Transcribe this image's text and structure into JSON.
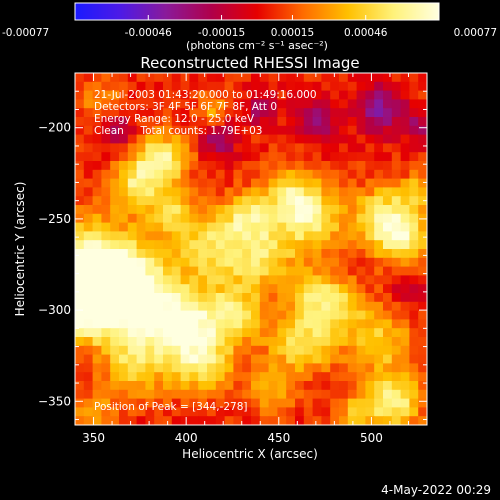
{
  "colorbar": {
    "ticks": [
      "-0.00077",
      "-0.00046",
      "-0.00015",
      "0.00015",
      "0.00046",
      "0.00077"
    ],
    "tick_values": [
      -0.00077,
      -0.00046,
      -0.00015,
      0.00015,
      0.00046,
      0.00077
    ],
    "units": "(photons cm⁻² s⁻¹ asec⁻²)",
    "range": [
      -0.00077,
      0.00077
    ],
    "colors": [
      "#1a1aff",
      "#4d1ae6",
      "#8a1a9a",
      "#b0004a",
      "#e60000",
      "#ff6a00",
      "#ffc000",
      "#fff27a",
      "#ffffe0"
    ]
  },
  "title": "Reconstructed RHESSI Image",
  "info": {
    "line1": "21-Jul-2003 01:43:20.000 to 01:49:16.000",
    "line2": "Detectors: 3F 4F 5F 6F 7F 8F, Att 0",
    "line3": "Energy Range: 12.0 - 25.0 keV",
    "line4": "Clean     Total counts: 1.79E+03"
  },
  "peak_label": "Position of Peak = [344,-278]",
  "timestamp": "4-May-2022 00:29",
  "chart_data": {
    "type": "heatmap",
    "title": "Reconstructed RHESSI Image",
    "xlabel": "Heliocentric X (arcsec)",
    "ylabel": "Heliocentric Y (arcsec)",
    "xlim": [
      340,
      530
    ],
    "ylim": [
      -363,
      -170
    ],
    "x_ticks": [
      350,
      400,
      450,
      500
    ],
    "y_ticks": [
      -200,
      -250,
      -300,
      -350
    ],
    "x_tick_labels": [
      "350",
      "400",
      "450",
      "500"
    ],
    "y_tick_labels": [
      "−200",
      "−250",
      "−300",
      "−350"
    ],
    "peak_position": [
      344,
      -278
    ],
    "z_range": [
      -0.00077,
      0.00077
    ],
    "grid": false,
    "blobs": [
      {
        "x": 350,
        "y": -278,
        "s": 18,
        "a": 1.0
      },
      {
        "x": 372,
        "y": -292,
        "s": 16,
        "a": 0.85
      },
      {
        "x": 346,
        "y": -300,
        "s": 12,
        "a": 0.7
      },
      {
        "x": 386,
        "y": -218,
        "s": 10,
        "a": 0.8
      },
      {
        "x": 372,
        "y": -232,
        "s": 9,
        "a": 0.55
      },
      {
        "x": 392,
        "y": -246,
        "s": 9,
        "a": 0.5
      },
      {
        "x": 412,
        "y": -266,
        "s": 12,
        "a": 0.55
      },
      {
        "x": 440,
        "y": -268,
        "s": 14,
        "a": 0.6
      },
      {
        "x": 468,
        "y": -250,
        "s": 12,
        "a": 0.65
      },
      {
        "x": 455,
        "y": -236,
        "s": 10,
        "a": 0.55
      },
      {
        "x": 432,
        "y": -248,
        "s": 9,
        "a": 0.5
      },
      {
        "x": 508,
        "y": -250,
        "s": 12,
        "a": 0.75
      },
      {
        "x": 518,
        "y": -262,
        "s": 9,
        "a": 0.55
      },
      {
        "x": 398,
        "y": -308,
        "s": 14,
        "a": 0.8
      },
      {
        "x": 426,
        "y": -302,
        "s": 12,
        "a": 0.55
      },
      {
        "x": 372,
        "y": -330,
        "s": 12,
        "a": 0.5
      },
      {
        "x": 408,
        "y": -330,
        "s": 12,
        "a": 0.55
      },
      {
        "x": 462,
        "y": -318,
        "s": 12,
        "a": 0.6
      },
      {
        "x": 482,
        "y": -300,
        "s": 11,
        "a": 0.5
      },
      {
        "x": 470,
        "y": -290,
        "s": 9,
        "a": 0.45
      },
      {
        "x": 505,
        "y": -318,
        "s": 12,
        "a": 0.5
      },
      {
        "x": 512,
        "y": -350,
        "s": 10,
        "a": 0.75
      },
      {
        "x": 492,
        "y": -356,
        "s": 8,
        "a": 0.4
      },
      {
        "x": 445,
        "y": -345,
        "s": 9,
        "a": 0.35
      },
      {
        "x": 350,
        "y": -356,
        "s": 7,
        "a": 0.4
      },
      {
        "x": 355,
        "y": -188,
        "s": 8,
        "a": 0.35
      },
      {
        "x": 415,
        "y": -190,
        "s": 6,
        "a": 0.35
      },
      {
        "x": 525,
        "y": -235,
        "s": 6,
        "a": 0.4
      },
      {
        "x": 470,
        "y": -195,
        "s": 8,
        "a": -0.5
      },
      {
        "x": 505,
        "y": -190,
        "s": 9,
        "a": -0.55
      },
      {
        "x": 362,
        "y": -200,
        "s": 7,
        "a": -0.45
      },
      {
        "x": 418,
        "y": -206,
        "s": 7,
        "a": -0.45
      },
      {
        "x": 440,
        "y": -190,
        "s": 6,
        "a": -0.4
      },
      {
        "x": 525,
        "y": -200,
        "s": 6,
        "a": -0.35
      },
      {
        "x": 520,
        "y": -290,
        "s": 6,
        "a": -0.3
      }
    ]
  }
}
